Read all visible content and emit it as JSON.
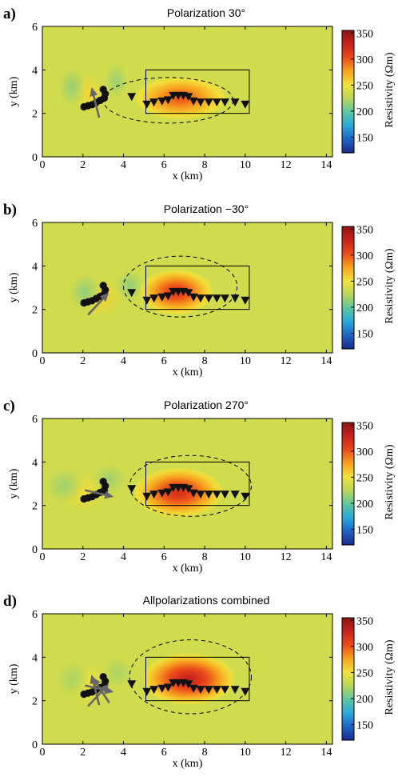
{
  "colorbar": {
    "label": "Resistivity (Ωm)",
    "ticks": [
      150,
      200,
      250,
      300,
      350
    ],
    "range": [
      120,
      355
    ],
    "colors": [
      "#1c2a8a",
      "#1f64c4",
      "#2aa8d8",
      "#5fc6a0",
      "#b9d65a",
      "#f2e23a",
      "#f7a21f",
      "#ea4a1a",
      "#c8221c",
      "#8b1414"
    ]
  },
  "chart_data": [
    {
      "type": "heatmap",
      "panel_label": "a)",
      "title": "Polarization 30°",
      "xlabel": "x (km)",
      "ylabel": "y (km)",
      "xlim": [
        0,
        14.3
      ],
      "ylim": [
        0,
        6
      ],
      "xticks": [
        0,
        2,
        4,
        6,
        8,
        10,
        12,
        14
      ],
      "yticks": [
        0,
        2,
        4,
        6
      ],
      "background_resistivity": 235,
      "anomaly": {
        "cx": 6.8,
        "cy": 2.7,
        "rx": 2.4,
        "ry": 1.05,
        "peak": 300
      },
      "dipole": {
        "cx": 2.35,
        "cy": 2.9,
        "rx": 0.8,
        "ry": 1.0,
        "amp": 20
      },
      "contour": {
        "cx": 6.2,
        "cy": 2.6,
        "rx": 3.2,
        "ry": 1.05
      },
      "box": {
        "x": [
          5.1,
          10.2
        ],
        "y": [
          2.0,
          4.0
        ]
      },
      "receivers": [
        [
          4.4,
          2.75
        ],
        [
          5.15,
          2.4
        ],
        [
          5.5,
          2.5
        ],
        [
          5.9,
          2.55
        ],
        [
          6.2,
          2.6
        ],
        [
          6.45,
          2.8
        ],
        [
          6.7,
          2.8
        ],
        [
          6.95,
          2.8
        ],
        [
          7.2,
          2.75
        ],
        [
          7.45,
          2.55
        ],
        [
          7.8,
          2.5
        ],
        [
          8.2,
          2.5
        ],
        [
          8.6,
          2.5
        ],
        [
          9.0,
          2.5
        ],
        [
          9.5,
          2.5
        ],
        [
          10.0,
          2.4
        ]
      ],
      "source_points": [
        [
          2.05,
          2.3
        ],
        [
          2.25,
          2.35
        ],
        [
          2.45,
          2.4
        ],
        [
          2.65,
          2.5
        ],
        [
          2.85,
          2.6
        ],
        [
          3.05,
          2.7
        ],
        [
          3.1,
          2.9
        ],
        [
          3.0,
          3.1
        ]
      ],
      "arrows": [
        {
          "x": 2.8,
          "y": 1.8,
          "angle": 105
        }
      ]
    },
    {
      "type": "heatmap",
      "panel_label": "b)",
      "title": "Polarization −30°",
      "xlabel": "x (km)",
      "ylabel": "y (km)",
      "xlim": [
        0,
        14.3
      ],
      "ylim": [
        0,
        6
      ],
      "xticks": [
        0,
        2,
        4,
        6,
        8,
        10,
        12,
        14
      ],
      "yticks": [
        0,
        2,
        4,
        6
      ],
      "background_resistivity": 235,
      "anomaly": {
        "cx": 6.6,
        "cy": 2.8,
        "rx": 1.9,
        "ry": 1.1,
        "peak": 315
      },
      "dipole": {
        "cx": 3.0,
        "cy": 2.5,
        "rx": 1.0,
        "ry": 0.9,
        "amp": 22
      },
      "contour": {
        "cx": 6.8,
        "cy": 3.05,
        "rx": 2.8,
        "ry": 1.4
      },
      "box": {
        "x": [
          5.1,
          10.2
        ],
        "y": [
          2.0,
          4.0
        ]
      },
      "receivers": [
        [
          4.4,
          2.75
        ],
        [
          5.15,
          2.4
        ],
        [
          5.5,
          2.5
        ],
        [
          5.9,
          2.55
        ],
        [
          6.2,
          2.6
        ],
        [
          6.45,
          2.8
        ],
        [
          6.7,
          2.8
        ],
        [
          6.95,
          2.8
        ],
        [
          7.2,
          2.75
        ],
        [
          7.45,
          2.55
        ],
        [
          7.8,
          2.5
        ],
        [
          8.2,
          2.5
        ],
        [
          8.6,
          2.5
        ],
        [
          9.0,
          2.5
        ],
        [
          9.5,
          2.5
        ],
        [
          10.0,
          2.4
        ]
      ],
      "source_points": [
        [
          2.05,
          2.3
        ],
        [
          2.25,
          2.35
        ],
        [
          2.45,
          2.4
        ],
        [
          2.65,
          2.5
        ],
        [
          2.85,
          2.6
        ],
        [
          3.05,
          2.7
        ],
        [
          3.1,
          2.9
        ],
        [
          3.0,
          3.1
        ]
      ],
      "arrows": [
        {
          "x": 2.25,
          "y": 1.75,
          "angle": 45
        }
      ]
    },
    {
      "type": "heatmap",
      "panel_label": "c)",
      "title": "Polarization 270°",
      "xlabel": "x (km)",
      "ylabel": "y (km)",
      "xlim": [
        0,
        14.3
      ],
      "ylim": [
        0,
        6
      ],
      "xticks": [
        0,
        2,
        4,
        6,
        8,
        10,
        12,
        14
      ],
      "yticks": [
        0,
        2,
        4,
        6
      ],
      "background_resistivity": 235,
      "anomaly": {
        "cx": 6.7,
        "cy": 2.6,
        "rx": 2.3,
        "ry": 1.2,
        "peak": 320
      },
      "dipole": {
        "cx": 2.0,
        "cy": 2.6,
        "rx": 1.2,
        "ry": 0.9,
        "amp": 18
      },
      "contour": {
        "cx": 7.3,
        "cy": 2.9,
        "rx": 3.0,
        "ry": 1.4
      },
      "box": {
        "x": [
          5.1,
          10.2
        ],
        "y": [
          2.0,
          4.0
        ]
      },
      "receivers": [
        [
          4.4,
          2.75
        ],
        [
          5.15,
          2.4
        ],
        [
          5.5,
          2.5
        ],
        [
          5.9,
          2.55
        ],
        [
          6.2,
          2.6
        ],
        [
          6.45,
          2.8
        ],
        [
          6.7,
          2.8
        ],
        [
          6.95,
          2.8
        ],
        [
          7.2,
          2.75
        ],
        [
          7.45,
          2.55
        ],
        [
          7.8,
          2.5
        ],
        [
          8.2,
          2.5
        ],
        [
          8.6,
          2.5
        ],
        [
          9.0,
          2.5
        ],
        [
          9.5,
          2.5
        ],
        [
          10.0,
          2.4
        ]
      ],
      "source_points": [
        [
          2.05,
          2.3
        ],
        [
          2.25,
          2.35
        ],
        [
          2.45,
          2.4
        ],
        [
          2.65,
          2.5
        ],
        [
          2.85,
          2.6
        ],
        [
          3.05,
          2.7
        ],
        [
          3.1,
          2.9
        ],
        [
          3.0,
          3.1
        ]
      ],
      "arrows": [
        {
          "x": 2.1,
          "y": 2.7,
          "angle": -12
        }
      ]
    },
    {
      "type": "heatmap",
      "panel_label": "d)",
      "title": "Allpolarizations combined",
      "xlabel": "x (km)",
      "ylabel": "y (km)",
      "xlim": [
        0,
        14.3
      ],
      "ylim": [
        0,
        6
      ],
      "xticks": [
        0,
        2,
        4,
        6,
        8,
        10,
        12,
        14
      ],
      "yticks": [
        0,
        2,
        4,
        6
      ],
      "background_resistivity": 235,
      "anomaly": {
        "cx": 7.2,
        "cy": 3.0,
        "rx": 2.4,
        "ry": 1.25,
        "peak": 330
      },
      "dipole": {
        "cx": 2.4,
        "cy": 2.7,
        "rx": 1.0,
        "ry": 0.9,
        "amp": 15
      },
      "contour": {
        "cx": 7.3,
        "cy": 3.1,
        "rx": 3.0,
        "ry": 1.7
      },
      "box": {
        "x": [
          5.1,
          10.2
        ],
        "y": [
          2.0,
          4.0
        ]
      },
      "receivers": [
        [
          4.4,
          2.75
        ],
        [
          5.15,
          2.4
        ],
        [
          5.5,
          2.5
        ],
        [
          5.9,
          2.55
        ],
        [
          6.2,
          2.6
        ],
        [
          6.45,
          2.8
        ],
        [
          6.7,
          2.8
        ],
        [
          6.95,
          2.8
        ],
        [
          7.2,
          2.75
        ],
        [
          7.45,
          2.55
        ],
        [
          7.8,
          2.5
        ],
        [
          8.2,
          2.5
        ],
        [
          8.6,
          2.5
        ],
        [
          9.0,
          2.5
        ],
        [
          9.5,
          2.5
        ],
        [
          10.0,
          2.4
        ]
      ],
      "source_points": [
        [
          2.05,
          2.3
        ],
        [
          2.25,
          2.35
        ],
        [
          2.45,
          2.4
        ],
        [
          2.65,
          2.5
        ],
        [
          2.85,
          2.6
        ],
        [
          3.05,
          2.7
        ],
        [
          3.1,
          2.9
        ],
        [
          3.0,
          3.1
        ]
      ],
      "arrows": [
        {
          "x": 2.8,
          "y": 1.8,
          "angle": 105
        },
        {
          "x": 2.25,
          "y": 1.75,
          "angle": 45
        },
        {
          "x": 2.1,
          "y": 2.7,
          "angle": -12
        },
        {
          "x": 3.3,
          "y": 1.9,
          "angle": 125
        }
      ]
    }
  ]
}
